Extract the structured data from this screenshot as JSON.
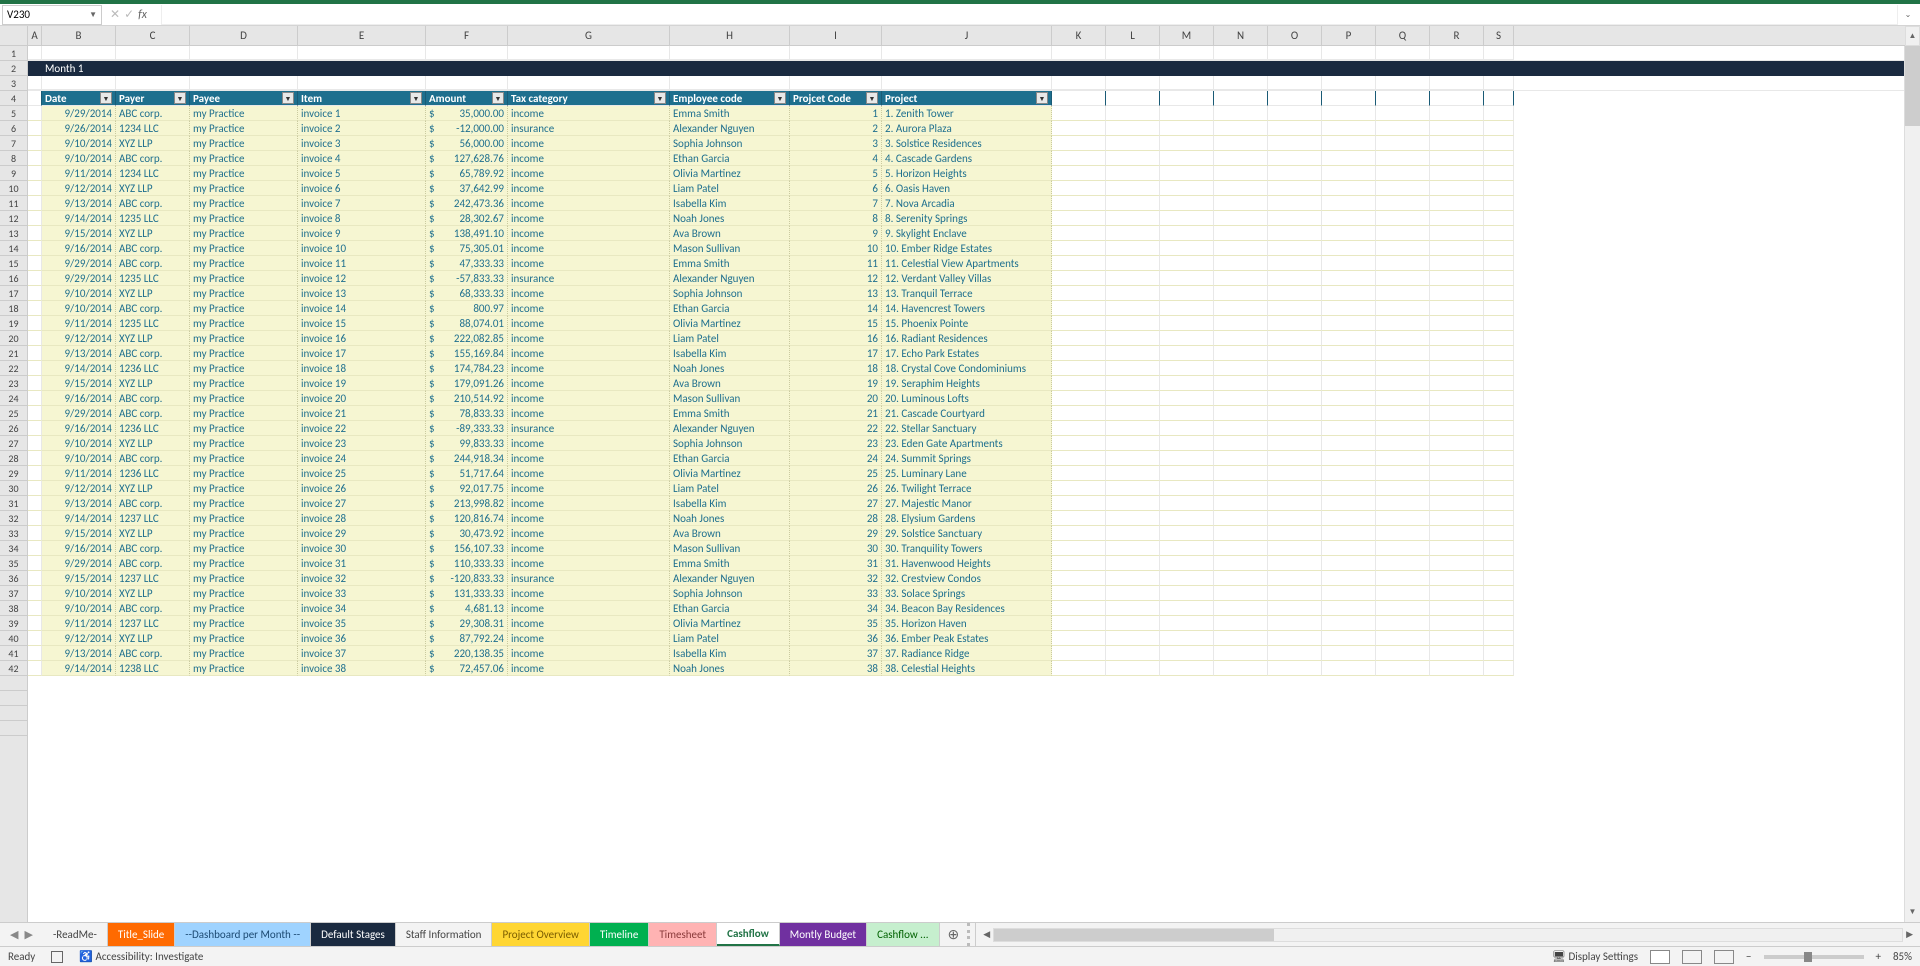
{
  "app": {
    "namebox": "V230",
    "fx": "fx",
    "zoom": "85%",
    "status_ready": "Ready",
    "accessibility": "Accessibility: Investigate",
    "display_settings": "Display Settings"
  },
  "columns": {
    "widths": {
      "A": 14,
      "B": 74,
      "C": 74,
      "D": 108,
      "E": 128,
      "F": 82,
      "G": 162,
      "H": 120,
      "I": 92,
      "J": 170,
      "K": 54,
      "L": 54,
      "M": 54,
      "N": 54,
      "O": 54,
      "P": 54,
      "Q": 54,
      "R": 54,
      "S": 30
    },
    "letters": [
      "A",
      "B",
      "C",
      "D",
      "E",
      "F",
      "G",
      "H",
      "I",
      "J",
      "K",
      "L",
      "M",
      "N",
      "O",
      "P",
      "Q",
      "R",
      "S"
    ]
  },
  "title_bar": "Month 1",
  "headers": [
    "Date",
    "Payer",
    "Payee",
    "Item",
    "Amount",
    "Tax category",
    "Employee code",
    "Projcet Code",
    "Project"
  ],
  "rows": [
    {
      "n": 5,
      "date": "9/29/2014",
      "payer": "ABC corp.",
      "payee": "my Practice",
      "item": "invoice 1",
      "amount": "35,000.00",
      "tax": "income",
      "emp": "Emma Smith",
      "code": "1",
      "proj": "1. Zenith Tower"
    },
    {
      "n": 6,
      "date": "9/26/2014",
      "payer": "1234 LLC",
      "payee": "my Practice",
      "item": "invoice 2",
      "amount": "-12,000.00",
      "tax": "insurance",
      "emp": "Alexander Nguyen",
      "code": "2",
      "proj": "2. Aurora Plaza"
    },
    {
      "n": 7,
      "date": "9/10/2014",
      "payer": "XYZ LLP",
      "payee": "my Practice",
      "item": "invoice 3",
      "amount": "56,000.00",
      "tax": "income",
      "emp": "Sophia Johnson",
      "code": "3",
      "proj": "3. Solstice Residences"
    },
    {
      "n": 8,
      "date": "9/10/2014",
      "payer": "ABC corp.",
      "payee": "my Practice",
      "item": "invoice 4",
      "amount": "127,628.76",
      "tax": "income",
      "emp": "Ethan Garcia",
      "code": "4",
      "proj": "4. Cascade Gardens"
    },
    {
      "n": 9,
      "date": "9/11/2014",
      "payer": "1234 LLC",
      "payee": "my Practice",
      "item": "invoice 5",
      "amount": "65,789.92",
      "tax": "income",
      "emp": "Olivia Martinez",
      "code": "5",
      "proj": "5. Horizon Heights"
    },
    {
      "n": 10,
      "date": "9/12/2014",
      "payer": "XYZ LLP",
      "payee": "my Practice",
      "item": "invoice 6",
      "amount": "37,642.99",
      "tax": "income",
      "emp": "Liam Patel",
      "code": "6",
      "proj": "6. Oasis Haven"
    },
    {
      "n": 11,
      "date": "9/13/2014",
      "payer": "ABC corp.",
      "payee": "my Practice",
      "item": "invoice 7",
      "amount": "242,473.36",
      "tax": "income",
      "emp": "Isabella Kim",
      "code": "7",
      "proj": "7. Nova Arcadia"
    },
    {
      "n": 12,
      "date": "9/14/2014",
      "payer": "1235 LLC",
      "payee": "my Practice",
      "item": "invoice 8",
      "amount": "28,302.67",
      "tax": "income",
      "emp": "Noah Jones",
      "code": "8",
      "proj": "8. Serenity Springs"
    },
    {
      "n": 13,
      "date": "9/15/2014",
      "payer": "XYZ LLP",
      "payee": "my Practice",
      "item": "invoice 9",
      "amount": "138,491.10",
      "tax": "income",
      "emp": "Ava Brown",
      "code": "9",
      "proj": "9. Skylight Enclave"
    },
    {
      "n": 14,
      "date": "9/16/2014",
      "payer": "ABC corp.",
      "payee": "my Practice",
      "item": "invoice 10",
      "amount": "75,305.01",
      "tax": "income",
      "emp": "Mason Sullivan",
      "code": "10",
      "proj": "10. Ember Ridge Estates"
    },
    {
      "n": 15,
      "date": "9/29/2014",
      "payer": "ABC corp.",
      "payee": "my Practice",
      "item": "invoice 11",
      "amount": "47,333.33",
      "tax": "income",
      "emp": "Emma Smith",
      "code": "11",
      "proj": "11. Celestial View Apartments"
    },
    {
      "n": 16,
      "date": "9/29/2014",
      "payer": "1235 LLC",
      "payee": "my Practice",
      "item": "invoice 12",
      "amount": "-57,833.33",
      "tax": "insurance",
      "emp": "Alexander Nguyen",
      "code": "12",
      "proj": "12. Verdant Valley Villas"
    },
    {
      "n": 17,
      "date": "9/10/2014",
      "payer": "XYZ LLP",
      "payee": "my Practice",
      "item": "invoice 13",
      "amount": "68,333.33",
      "tax": "income",
      "emp": "Sophia Johnson",
      "code": "13",
      "proj": "13. Tranquil Terrace"
    },
    {
      "n": 18,
      "date": "9/10/2014",
      "payer": "ABC corp.",
      "payee": "my Practice",
      "item": "invoice 14",
      "amount": "800.97",
      "tax": "income",
      "emp": "Ethan Garcia",
      "code": "14",
      "proj": "14. Havencrest Towers"
    },
    {
      "n": 19,
      "date": "9/11/2014",
      "payer": "1235 LLC",
      "payee": "my Practice",
      "item": "invoice 15",
      "amount": "88,074.01",
      "tax": "income",
      "emp": "Olivia Martinez",
      "code": "15",
      "proj": "15. Phoenix Pointe"
    },
    {
      "n": 20,
      "date": "9/12/2014",
      "payer": "XYZ LLP",
      "payee": "my Practice",
      "item": "invoice 16",
      "amount": "222,082.85",
      "tax": "income",
      "emp": "Liam Patel",
      "code": "16",
      "proj": "16. Radiant Residences"
    },
    {
      "n": 21,
      "date": "9/13/2014",
      "payer": "ABC corp.",
      "payee": "my Practice",
      "item": "invoice 17",
      "amount": "155,169.84",
      "tax": "income",
      "emp": "Isabella Kim",
      "code": "17",
      "proj": "17. Echo Park Estates"
    },
    {
      "n": 22,
      "date": "9/14/2014",
      "payer": "1236 LLC",
      "payee": "my Practice",
      "item": "invoice 18",
      "amount": "174,784.23",
      "tax": "income",
      "emp": "Noah Jones",
      "code": "18",
      "proj": "18. Crystal Cove Condominiums"
    },
    {
      "n": 23,
      "date": "9/15/2014",
      "payer": "XYZ LLP",
      "payee": "my Practice",
      "item": "invoice 19",
      "amount": "179,091.26",
      "tax": "income",
      "emp": "Ava Brown",
      "code": "19",
      "proj": "19. Seraphim Heights"
    },
    {
      "n": 24,
      "date": "9/16/2014",
      "payer": "ABC corp.",
      "payee": "my Practice",
      "item": "invoice 20",
      "amount": "210,514.92",
      "tax": "income",
      "emp": "Mason Sullivan",
      "code": "20",
      "proj": "20. Luminous Lofts"
    },
    {
      "n": 25,
      "date": "9/29/2014",
      "payer": "ABC corp.",
      "payee": "my Practice",
      "item": "invoice 21",
      "amount": "78,833.33",
      "tax": "income",
      "emp": "Emma Smith",
      "code": "21",
      "proj": "21. Cascade Courtyard"
    },
    {
      "n": 26,
      "date": "9/16/2014",
      "payer": "1236 LLC",
      "payee": "my Practice",
      "item": "invoice 22",
      "amount": "-89,333.33",
      "tax": "insurance",
      "emp": "Alexander Nguyen",
      "code": "22",
      "proj": "22. Stellar Sanctuary"
    },
    {
      "n": 27,
      "date": "9/10/2014",
      "payer": "XYZ LLP",
      "payee": "my Practice",
      "item": "invoice 23",
      "amount": "99,833.33",
      "tax": "income",
      "emp": "Sophia Johnson",
      "code": "23",
      "proj": "23. Eden Gate Apartments"
    },
    {
      "n": 28,
      "date": "9/10/2014",
      "payer": "ABC corp.",
      "payee": "my Practice",
      "item": "invoice 24",
      "amount": "244,918.34",
      "tax": "income",
      "emp": "Ethan Garcia",
      "code": "24",
      "proj": "24. Summit Springs"
    },
    {
      "n": 29,
      "date": "9/11/2014",
      "payer": "1236 LLC",
      "payee": "my Practice",
      "item": "invoice 25",
      "amount": "51,717.64",
      "tax": "income",
      "emp": "Olivia Martinez",
      "code": "25",
      "proj": "25. Luminary Lane"
    },
    {
      "n": 30,
      "date": "9/12/2014",
      "payer": "XYZ LLP",
      "payee": "my Practice",
      "item": "invoice 26",
      "amount": "92,017.75",
      "tax": "income",
      "emp": "Liam Patel",
      "code": "26",
      "proj": "26. Twilight Terrace"
    },
    {
      "n": 31,
      "date": "9/13/2014",
      "payer": "ABC corp.",
      "payee": "my Practice",
      "item": "invoice 27",
      "amount": "213,998.82",
      "tax": "income",
      "emp": "Isabella Kim",
      "code": "27",
      "proj": "27. Majestic Manor"
    },
    {
      "n": 32,
      "date": "9/14/2014",
      "payer": "1237 LLC",
      "payee": "my Practice",
      "item": "invoice 28",
      "amount": "120,816.74",
      "tax": "income",
      "emp": "Noah Jones",
      "code": "28",
      "proj": "28. Elysium Gardens"
    },
    {
      "n": 33,
      "date": "9/15/2014",
      "payer": "XYZ LLP",
      "payee": "my Practice",
      "item": "invoice 29",
      "amount": "30,473.92",
      "tax": "income",
      "emp": "Ava Brown",
      "code": "29",
      "proj": "29. Solstice Sanctuary"
    },
    {
      "n": 34,
      "date": "9/16/2014",
      "payer": "ABC corp.",
      "payee": "my Practice",
      "item": "invoice 30",
      "amount": "156,107.33",
      "tax": "income",
      "emp": "Mason Sullivan",
      "code": "30",
      "proj": "30. Tranquility Towers"
    },
    {
      "n": 35,
      "date": "9/29/2014",
      "payer": "ABC corp.",
      "payee": "my Practice",
      "item": "invoice 31",
      "amount": "110,333.33",
      "tax": "income",
      "emp": "Emma Smith",
      "code": "31",
      "proj": "31. Havenwood Heights"
    },
    {
      "n": 36,
      "date": "9/15/2014",
      "payer": "1237 LLC",
      "payee": "my Practice",
      "item": "invoice 32",
      "amount": "-120,833.33",
      "tax": "insurance",
      "emp": "Alexander Nguyen",
      "code": "32",
      "proj": "32. Crestview Condos"
    },
    {
      "n": 37,
      "date": "9/10/2014",
      "payer": "XYZ LLP",
      "payee": "my Practice",
      "item": "invoice 33",
      "amount": "131,333.33",
      "tax": "income",
      "emp": "Sophia Johnson",
      "code": "33",
      "proj": "33. Solace Springs"
    },
    {
      "n": 38,
      "date": "9/10/2014",
      "payer": "ABC corp.",
      "payee": "my Practice",
      "item": "invoice 34",
      "amount": "4,681.13",
      "tax": "income",
      "emp": "Ethan Garcia",
      "code": "34",
      "proj": "34. Beacon Bay Residences"
    },
    {
      "n": 39,
      "date": "9/11/2014",
      "payer": "1237 LLC",
      "payee": "my Practice",
      "item": "invoice 35",
      "amount": "29,308.31",
      "tax": "income",
      "emp": "Olivia Martinez",
      "code": "35",
      "proj": "35. Horizon Haven"
    },
    {
      "n": 40,
      "date": "9/12/2014",
      "payer": "XYZ LLP",
      "payee": "my Practice",
      "item": "invoice 36",
      "amount": "87,792.24",
      "tax": "income",
      "emp": "Liam Patel",
      "code": "36",
      "proj": "36. Ember Peak Estates"
    },
    {
      "n": 41,
      "date": "9/13/2014",
      "payer": "ABC corp.",
      "payee": "my Practice",
      "item": "invoice 37",
      "amount": "220,138.35",
      "tax": "income",
      "emp": "Isabella Kim",
      "code": "37",
      "proj": "37. Radiance Ridge"
    },
    {
      "n": 42,
      "date": "9/14/2014",
      "payer": "1238 LLC",
      "payee": "my Practice",
      "item": "invoice 38",
      "amount": "72,457.06",
      "tax": "income",
      "emp": "Noah Jones",
      "code": "38",
      "proj": "38. Celestial Heights"
    }
  ],
  "tabs": [
    {
      "label": "-ReadMe-",
      "bg": "#f3f3f3",
      "fg": "#444"
    },
    {
      "label": "Title_Slide",
      "bg": "#ff6a00",
      "fg": "#fff"
    },
    {
      "label": "--Dashboard per Month --",
      "bg": "#9fd3ff",
      "fg": "#1c4a73"
    },
    {
      "label": "Default Stages",
      "bg": "#1a2a40",
      "fg": "#fff"
    },
    {
      "label": "Staff Information",
      "bg": "#f3f3f3",
      "fg": "#444"
    },
    {
      "label": "Project Overview",
      "bg": "#ffd633",
      "fg": "#7a5c00"
    },
    {
      "label": "Timeline",
      "bg": "#00b050",
      "fg": "#fff"
    },
    {
      "label": "Timesheet",
      "bg": "#ffb3b3",
      "fg": "#8a3a3a"
    },
    {
      "label": "Cashflow",
      "bg": "#ffffff",
      "fg": "#217346",
      "active": true
    },
    {
      "label": "Montly Budget",
      "bg": "#7030a0",
      "fg": "#fff"
    },
    {
      "label": "Cashflow ...",
      "bg": "#c6efce",
      "fg": "#006100"
    }
  ],
  "style": {
    "title_bg": "#1a2a40",
    "header_bg": "#1e6f8e",
    "data_bg": "#f6f6d2",
    "data_fg": "#1e6f8e",
    "accent": "#217346"
  }
}
